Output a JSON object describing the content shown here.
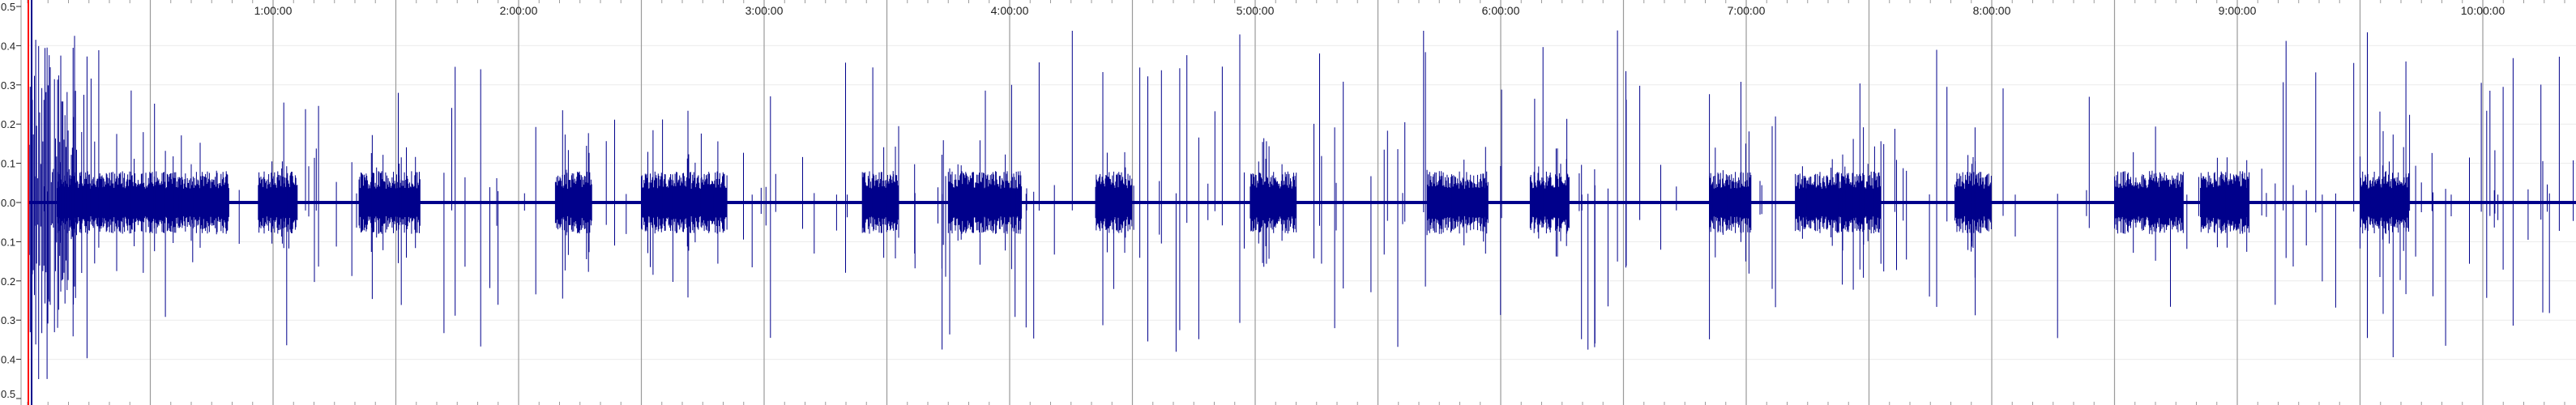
{
  "timeline": {
    "time_labels": [
      "1:00:00",
      "2:00:00",
      "3:00:00",
      "4:00:00",
      "5:00:00",
      "6:00:00",
      "7:00:00",
      "8:00:00",
      "9:00:00",
      "10:00:00"
    ],
    "span_hours": 10.45
  },
  "amplitude_axis": {
    "labels": [
      "0.5",
      "0.4",
      "0.3",
      "0.2",
      "0.1",
      "0.0",
      "0.1",
      "0.2",
      "0.3",
      "0.4",
      "0.5"
    ],
    "min": -0.5,
    "max": 0.5
  },
  "colors": {
    "waveform": "#00008b",
    "playhead": "#ff0000",
    "gridline": "#9a9a9a",
    "minor_grid": "#ececec",
    "label": "#222222"
  },
  "waveform": {
    "active_segments_hours": [
      [
        0.12,
        0.82
      ],
      [
        0.94,
        1.1
      ],
      [
        1.35,
        1.6
      ],
      [
        2.15,
        2.3
      ],
      [
        2.5,
        2.85
      ],
      [
        3.4,
        3.55
      ],
      [
        3.75,
        4.05
      ],
      [
        4.35,
        4.5
      ],
      [
        4.98,
        5.17
      ],
      [
        5.7,
        5.95
      ],
      [
        6.12,
        6.28
      ],
      [
        6.85,
        7.02
      ],
      [
        7.2,
        7.55
      ],
      [
        7.85,
        8.0
      ],
      [
        8.5,
        8.78
      ],
      [
        8.85,
        9.05
      ],
      [
        9.5,
        9.7
      ]
    ],
    "spike_peak": 0.42
  }
}
